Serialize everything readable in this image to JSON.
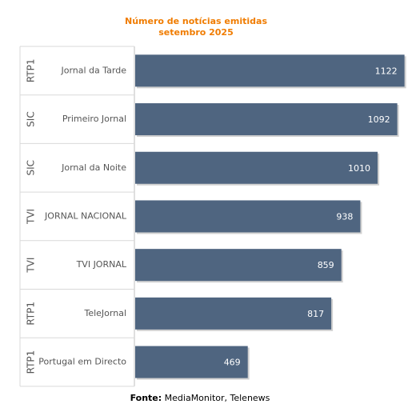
{
  "chart_data": {
    "type": "bar",
    "orientation": "horizontal",
    "title": "Número de notícias emitidas",
    "subtitle": "setembro 2025",
    "groups": [
      "RTP1",
      "SIC",
      "SIC",
      "TVI",
      "TVI",
      "RTP1",
      "RTP1"
    ],
    "categories": [
      "Jornal da Tarde",
      "Primeiro Jornal",
      "Jornal da Noite",
      "JORNAL NACIONAL",
      "TVI JORNAL",
      "TeleJornal",
      "Portugal em Directo"
    ],
    "values": [
      1122,
      1092,
      1010,
      938,
      859,
      817,
      469
    ],
    "xlim": [
      0,
      1200
    ],
    "grid": false,
    "colors": {
      "bar": "#4f6580",
      "title": "#f07c00",
      "value_label": "#ffffff",
      "category_label": "#555555"
    }
  },
  "footer": {
    "label": "Fonte:",
    "text": "MediaMonitor, Telenews"
  }
}
